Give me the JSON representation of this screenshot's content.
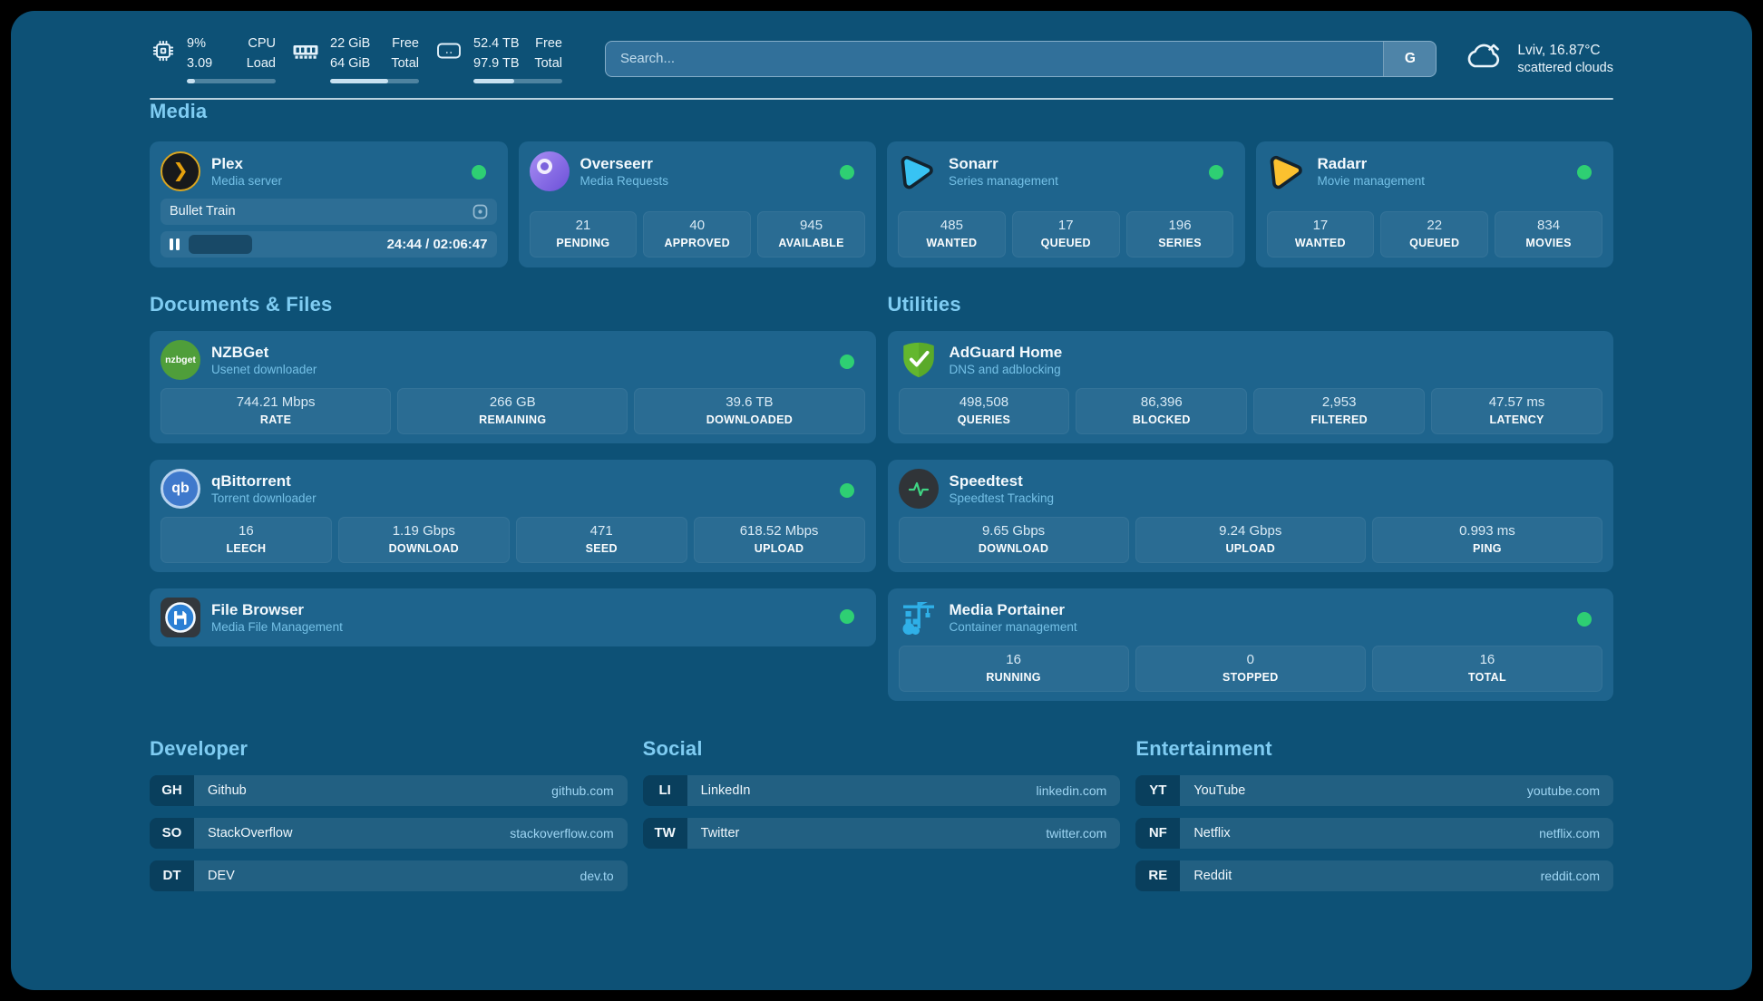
{
  "colors": {
    "background": "#0d5176",
    "card": "#1e648d",
    "heading": "#7fccf2",
    "status_ok": "#2ecf73"
  },
  "topbar": {
    "cpu": {
      "percent": "9%",
      "load": "3.09",
      "label_top": "CPU",
      "label_bottom": "Load",
      "progress": 9
    },
    "memory": {
      "free": "22 GiB",
      "total": "64 GiB",
      "label_top": "Free",
      "label_bottom": "Total",
      "progress": 65
    },
    "disk": {
      "free": "52.4 TB",
      "total": "97.9 TB",
      "label_top": "Free",
      "label_bottom": "Total",
      "progress": 46
    },
    "search": {
      "placeholder": "Search...",
      "button_label": "G"
    },
    "weather": {
      "location": "Lviv, 16.87°C",
      "condition": "scattered clouds"
    }
  },
  "media": {
    "title": "Media",
    "plex": {
      "title": "Plex",
      "subtitle": "Media server",
      "logo_glyph": "❯",
      "now_playing": "Bullet Train",
      "time": "24:44 / 02:06:47",
      "progress": 20
    },
    "overseerr": {
      "title": "Overseerr",
      "subtitle": "Media Requests",
      "stats": [
        {
          "value": "21",
          "label": "PENDING"
        },
        {
          "value": "40",
          "label": "APPROVED"
        },
        {
          "value": "945",
          "label": "AVAILABLE"
        }
      ]
    },
    "sonarr": {
      "title": "Sonarr",
      "subtitle": "Series management",
      "stats": [
        {
          "value": "485",
          "label": "WANTED"
        },
        {
          "value": "17",
          "label": "QUEUED"
        },
        {
          "value": "196",
          "label": "SERIES"
        }
      ]
    },
    "radarr": {
      "title": "Radarr",
      "subtitle": "Movie management",
      "stats": [
        {
          "value": "17",
          "label": "WANTED"
        },
        {
          "value": "22",
          "label": "QUEUED"
        },
        {
          "value": "834",
          "label": "MOVIES"
        }
      ]
    }
  },
  "documents": {
    "title": "Documents & Files",
    "nzbget": {
      "title": "NZBGet",
      "subtitle": "Usenet downloader",
      "logo_text": "nzbget",
      "stats": [
        {
          "value": "744.21 Mbps",
          "label": "RATE"
        },
        {
          "value": "266 GB",
          "label": "REMAINING"
        },
        {
          "value": "39.6 TB",
          "label": "DOWNLOADED"
        }
      ]
    },
    "qbittorrent": {
      "title": "qBittorrent",
      "subtitle": "Torrent downloader",
      "logo_text": "qb",
      "stats": [
        {
          "value": "16",
          "label": "LEECH"
        },
        {
          "value": "1.19 Gbps",
          "label": "DOWNLOAD"
        },
        {
          "value": "471",
          "label": "SEED"
        },
        {
          "value": "618.52 Mbps",
          "label": "UPLOAD"
        }
      ]
    },
    "filebrowser": {
      "title": "File Browser",
      "subtitle": "Media File Management"
    }
  },
  "utilities": {
    "title": "Utilities",
    "adguard": {
      "title": "AdGuard Home",
      "subtitle": "DNS and adblocking",
      "stats": [
        {
          "value": "498,508",
          "label": "QUERIES"
        },
        {
          "value": "86,396",
          "label": "BLOCKED"
        },
        {
          "value": "2,953",
          "label": "FILTERED"
        },
        {
          "value": "47.57 ms",
          "label": "LATENCY"
        }
      ]
    },
    "speedtest": {
      "title": "Speedtest",
      "subtitle": "Speedtest Tracking",
      "stats": [
        {
          "value": "9.65 Gbps",
          "label": "DOWNLOAD"
        },
        {
          "value": "9.24 Gbps",
          "label": "UPLOAD"
        },
        {
          "value": "0.993 ms",
          "label": "PING"
        }
      ]
    },
    "portainer": {
      "title": "Media Portainer",
      "subtitle": "Container management",
      "stats": [
        {
          "value": "16",
          "label": "RUNNING"
        },
        {
          "value": "0",
          "label": "STOPPED"
        },
        {
          "value": "16",
          "label": "TOTAL"
        }
      ]
    }
  },
  "links": {
    "developer": {
      "title": "Developer",
      "items": [
        {
          "abbr": "GH",
          "name": "Github",
          "url": "github.com"
        },
        {
          "abbr": "SO",
          "name": "StackOverflow",
          "url": "stackoverflow.com"
        },
        {
          "abbr": "DT",
          "name": "DEV",
          "url": "dev.to"
        }
      ]
    },
    "social": {
      "title": "Social",
      "items": [
        {
          "abbr": "LI",
          "name": "LinkedIn",
          "url": "linkedin.com"
        },
        {
          "abbr": "TW",
          "name": "Twitter",
          "url": "twitter.com"
        }
      ]
    },
    "entertainment": {
      "title": "Entertainment",
      "items": [
        {
          "abbr": "YT",
          "name": "YouTube",
          "url": "youtube.com"
        },
        {
          "abbr": "NF",
          "name": "Netflix",
          "url": "netflix.com"
        },
        {
          "abbr": "RE",
          "name": "Reddit",
          "url": "reddit.com"
        }
      ]
    }
  }
}
